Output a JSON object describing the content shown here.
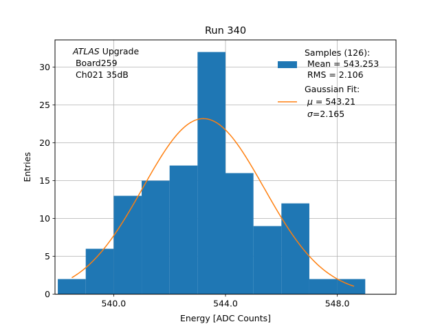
{
  "chart_data": {
    "type": "bar",
    "title": "Run 340",
    "xlabel": "Energy [ADC Counts]",
    "ylabel": "Entries",
    "xlim": [
      537.9,
      550.1
    ],
    "ylim": [
      0,
      33.6
    ],
    "xticks": [
      540.0,
      544.0,
      548.0
    ],
    "xtick_labels": [
      "540.0",
      "544.0",
      "548.0"
    ],
    "yticks": [
      0,
      5,
      10,
      15,
      20,
      25,
      30
    ],
    "ytick_labels": [
      "0",
      "5",
      "10",
      "15",
      "20",
      "25",
      "30"
    ],
    "grid": true,
    "bin_edges": [
      538,
      539,
      540,
      541,
      542,
      543,
      544,
      545,
      546,
      547,
      548,
      549
    ],
    "values": [
      2,
      6,
      13,
      15,
      17,
      32,
      16,
      9,
      12,
      2,
      2
    ],
    "bar_color": "#1f77b4",
    "fit": {
      "mu": 543.21,
      "sigma": 2.165,
      "amplitude": 23.2,
      "x_range": [
        538.5,
        548.6
      ],
      "color": "#ff7f0e"
    },
    "annotation": {
      "line1_italic": "ATLAS",
      "line1_rest": " Upgrade",
      "line2": " Board259",
      "line3": " Ch021 35dB"
    },
    "legend": {
      "placement": "top-right",
      "samples": {
        "line1": "Samples (126):",
        "line2": " Mean = 543.253",
        "line3": " RMS = 2.106"
      },
      "fit": {
        "line1": "Gaussian Fit:",
        "line2_symbol": "μ",
        "line2_rest": " = 543.21",
        "line3_symbol": "σ",
        "line3_rest": "=2.165"
      }
    }
  }
}
